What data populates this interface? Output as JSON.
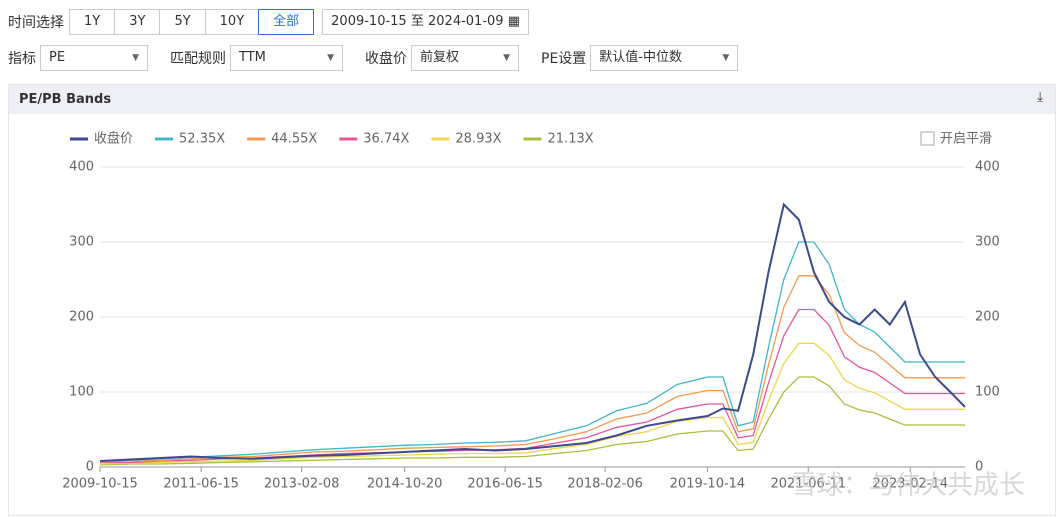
{
  "toolbar": {
    "time_label": "时间选择",
    "ranges": [
      "1Y",
      "3Y",
      "5Y",
      "10Y",
      "全部"
    ],
    "date_start": "2009-10-15",
    "date_sep": "至",
    "date_end": "2024-01-09",
    "selects": [
      {
        "label": "指标",
        "value": "PE"
      },
      {
        "label": "匹配规则",
        "value": "TTM"
      },
      {
        "label": "收盘价",
        "value": "前复权"
      },
      {
        "label": "PE设置",
        "value": "默认值-中位数"
      }
    ]
  },
  "panel": {
    "title": "PE/PB Bands"
  },
  "smooth_label": "开启平滑",
  "watermark": "雪球：与伟大共成长",
  "chart_data": {
    "type": "line",
    "x": [
      "2009-10-15",
      "2010-04-15",
      "2010-10-15",
      "2011-04-15",
      "2011-10-15",
      "2012-04-16",
      "2012-10-15",
      "2013-04-15",
      "2013-10-15",
      "2014-04-15",
      "2014-10-15",
      "2015-04-15",
      "2015-10-15",
      "2016-04-15",
      "2016-10-17",
      "2017-04-17",
      "2017-10-16",
      "2018-04-16",
      "2018-10-15",
      "2019-04-15",
      "2019-10-15",
      "2020-01-15",
      "2020-04-15",
      "2020-07-15",
      "2020-10-15",
      "2021-01-15",
      "2021-04-15",
      "2021-07-15",
      "2021-10-15",
      "2022-01-14",
      "2022-04-15",
      "2022-07-15",
      "2022-10-14",
      "2023-01-13",
      "2023-04-14",
      "2023-07-14",
      "2023-10-13",
      "2024-01-09"
    ],
    "xlim": [
      "2009-10-15",
      "2024-01-09"
    ],
    "xticks": [
      "2009-10-15",
      "2011-06-15",
      "2013-02-08",
      "2014-10-20",
      "2016-06-15",
      "2018-02-06",
      "2019-10-14",
      "2021-06-11",
      "2023-02-14"
    ],
    "ylim": [
      0,
      400
    ],
    "yticks": [
      0,
      100,
      200,
      300,
      400
    ],
    "y2lim": [
      0,
      400
    ],
    "y2ticks": [
      0,
      100,
      200,
      300,
      400
    ],
    "grid": true,
    "series": [
      {
        "name": "收盘价",
        "color": "#3d4a8f",
        "values": [
          8,
          10,
          12,
          14,
          12,
          11,
          13,
          15,
          16,
          18,
          20,
          22,
          24,
          22,
          24,
          28,
          32,
          42,
          55,
          62,
          68,
          78,
          75,
          150,
          260,
          350,
          330,
          260,
          220,
          200,
          190,
          210,
          190,
          220,
          150,
          120,
          100,
          80
        ]
      },
      {
        "name": "52.35X",
        "color": "#3fb8c9",
        "values": [
          8,
          9,
          11,
          13,
          15,
          17,
          20,
          23,
          25,
          27,
          29,
          30,
          32,
          33,
          35,
          45,
          55,
          75,
          85,
          110,
          120,
          120,
          55,
          60,
          160,
          250,
          300,
          300,
          270,
          210,
          190,
          180,
          160,
          140,
          140,
          140,
          140,
          140
        ]
      },
      {
        "name": "44.55X",
        "color": "#f39a4e",
        "values": [
          7,
          8,
          9,
          11,
          13,
          14,
          17,
          20,
          21,
          23,
          25,
          26,
          27,
          28,
          30,
          38,
          47,
          64,
          72,
          94,
          102,
          102,
          47,
          51,
          136,
          213,
          255,
          255,
          230,
          179,
          162,
          153,
          136,
          119,
          119,
          119,
          119,
          119
        ]
      },
      {
        "name": "36.74X",
        "color": "#e8569b",
        "values": [
          6,
          6,
          8,
          9,
          11,
          12,
          14,
          16,
          18,
          19,
          20,
          21,
          22,
          23,
          25,
          32,
          39,
          53,
          60,
          77,
          84,
          84,
          39,
          42,
          112,
          175,
          210,
          210,
          189,
          147,
          133,
          126,
          112,
          98,
          98,
          98,
          98,
          98
        ]
      },
      {
        "name": "28.93X",
        "color": "#f0d64a",
        "values": [
          4,
          5,
          6,
          7,
          8,
          9,
          11,
          13,
          14,
          15,
          16,
          17,
          18,
          18,
          19,
          25,
          30,
          41,
          47,
          61,
          66,
          66,
          30,
          33,
          88,
          138,
          165,
          165,
          149,
          116,
          105,
          99,
          88,
          77,
          77,
          77,
          77,
          77
        ]
      },
      {
        "name": "21.13X",
        "color": "#a6c13a",
        "values": [
          3,
          4,
          4,
          5,
          6,
          7,
          8,
          9,
          10,
          11,
          12,
          12,
          13,
          13,
          14,
          18,
          22,
          30,
          34,
          44,
          48,
          48,
          22,
          24,
          64,
          100,
          120,
          120,
          108,
          84,
          76,
          72,
          64,
          56,
          56,
          56,
          56,
          56
        ]
      }
    ]
  }
}
